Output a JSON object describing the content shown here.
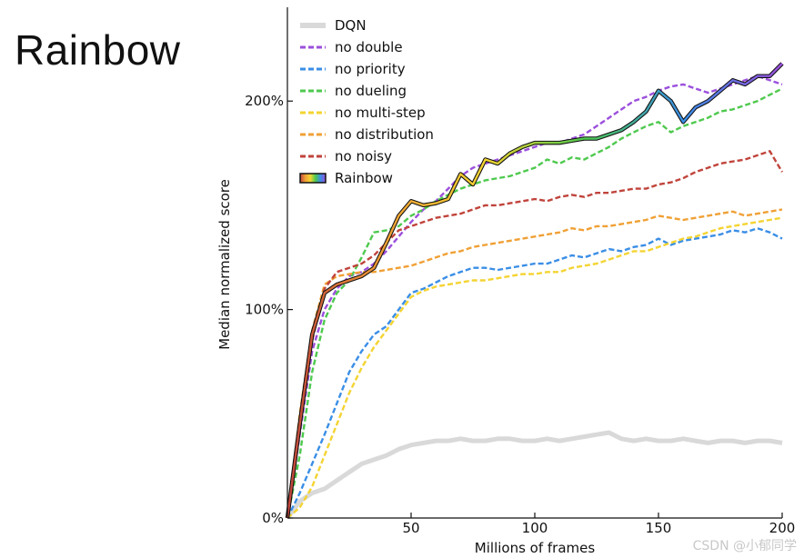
{
  "slide": {
    "title": "Rainbow"
  },
  "watermark": "CSDN @小郁同学",
  "chart_data": {
    "type": "line",
    "title": "",
    "xlabel": "Millions of frames",
    "ylabel": "Median normalized score",
    "xlim": [
      0,
      200
    ],
    "ylim": [
      0,
      245
    ],
    "xticks": [
      50,
      100,
      150,
      200
    ],
    "xtick_labels": [
      "50",
      "100",
      "150",
      "200"
    ],
    "yticks": [
      0,
      100,
      200
    ],
    "ytick_labels": [
      "0%",
      "100%",
      "200%"
    ],
    "grid": false,
    "legend_position": "top-left",
    "x": [
      0,
      5,
      10,
      15,
      20,
      25,
      30,
      35,
      40,
      45,
      50,
      55,
      60,
      65,
      70,
      75,
      80,
      85,
      90,
      95,
      100,
      105,
      110,
      115,
      120,
      125,
      130,
      135,
      140,
      145,
      150,
      155,
      160,
      165,
      170,
      175,
      180,
      185,
      190,
      195,
      200
    ],
    "series": [
      {
        "name": "DQN",
        "color": "#d9d9d9",
        "style": "solid",
        "values": [
          0,
          8,
          12,
          14,
          18,
          22,
          26,
          28,
          30,
          33,
          35,
          36,
          37,
          37,
          38,
          37,
          37,
          38,
          38,
          37,
          37,
          38,
          37,
          38,
          39,
          40,
          41,
          38,
          37,
          38,
          37,
          37,
          38,
          37,
          36,
          37,
          37,
          36,
          37,
          37,
          36
        ]
      },
      {
        "name": "no double",
        "color": "#9b4fdc",
        "style": "dashed",
        "values": [
          0,
          40,
          80,
          100,
          110,
          116,
          118,
          122,
          128,
          135,
          142,
          148,
          152,
          158,
          164,
          168,
          170,
          172,
          174,
          176,
          178,
          180,
          180,
          182,
          184,
          188,
          192,
          196,
          200,
          202,
          205,
          207,
          208,
          206,
          204,
          206,
          208,
          210,
          212,
          210,
          208
        ]
      },
      {
        "name": "no priority",
        "color": "#3a8ee6",
        "style": "dashed",
        "values": [
          0,
          12,
          26,
          40,
          55,
          70,
          80,
          88,
          92,
          100,
          108,
          110,
          113,
          116,
          118,
          120,
          120,
          119,
          120,
          121,
          122,
          122,
          124,
          126,
          125,
          127,
          129,
          128,
          130,
          131,
          134,
          131,
          133,
          134,
          135,
          136,
          138,
          137,
          139,
          137,
          134
        ]
      },
      {
        "name": "no dueling",
        "color": "#4ec94e",
        "style": "dashed",
        "values": [
          0,
          30,
          70,
          95,
          108,
          114,
          125,
          137,
          138,
          140,
          145,
          148,
          152,
          155,
          158,
          160,
          162,
          163,
          164,
          166,
          168,
          172,
          170,
          173,
          172,
          175,
          178,
          182,
          185,
          188,
          190,
          185,
          188,
          190,
          192,
          195,
          196,
          198,
          200,
          203,
          206
        ]
      },
      {
        "name": "no multi-step",
        "color": "#f4d432",
        "style": "dashed",
        "values": [
          0,
          5,
          15,
          30,
          45,
          60,
          72,
          82,
          90,
          98,
          106,
          109,
          111,
          112,
          113,
          114,
          114,
          115,
          116,
          117,
          117,
          118,
          118,
          120,
          121,
          122,
          124,
          126,
          128,
          128,
          130,
          132,
          134,
          135,
          137,
          139,
          140,
          141,
          142,
          143,
          144
        ]
      },
      {
        "name": "no distribution",
        "color": "#f0a035",
        "style": "dashed",
        "values": [
          0,
          50,
          90,
          112,
          116,
          117,
          118,
          118,
          119,
          120,
          121,
          123,
          125,
          127,
          128,
          130,
          131,
          132,
          133,
          134,
          135,
          136,
          137,
          139,
          138,
          140,
          140,
          141,
          142,
          143,
          145,
          144,
          143,
          144,
          145,
          146,
          147,
          145,
          146,
          147,
          148
        ]
      },
      {
        "name": "no noisy",
        "color": "#c0443c",
        "style": "dashed",
        "values": [
          0,
          45,
          85,
          110,
          118,
          120,
          122,
          126,
          132,
          138,
          140,
          142,
          144,
          145,
          146,
          148,
          150,
          150,
          151,
          152,
          153,
          152,
          154,
          155,
          154,
          156,
          156,
          157,
          158,
          158,
          160,
          161,
          163,
          166,
          168,
          170,
          171,
          172,
          174,
          176,
          166
        ]
      },
      {
        "name": "Rainbow",
        "color": "rainbow",
        "style": "solid",
        "values": [
          0,
          45,
          88,
          108,
          112,
          114,
          116,
          120,
          132,
          145,
          152,
          150,
          151,
          153,
          165,
          160,
          172,
          170,
          175,
          178,
          180,
          180,
          180,
          181,
          182,
          182,
          184,
          186,
          190,
          195,
          205,
          200,
          190,
          197,
          200,
          205,
          210,
          208,
          212,
          212,
          218
        ]
      }
    ]
  }
}
